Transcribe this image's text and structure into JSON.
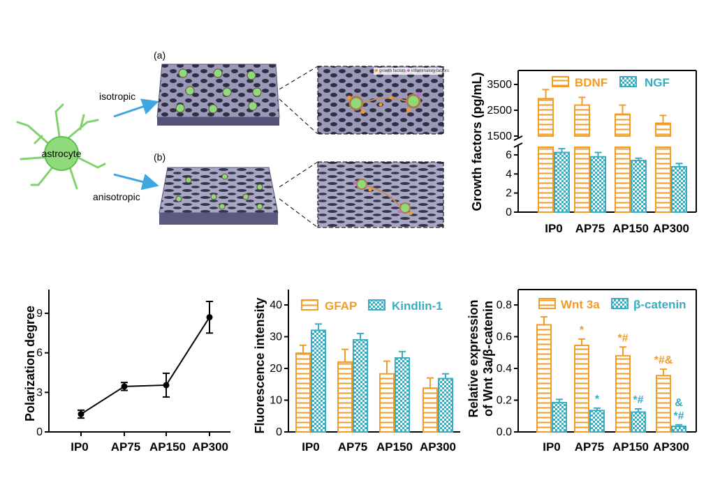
{
  "colors": {
    "orange": "#F39C25",
    "teal": "#3AACC2",
    "black": "#000000",
    "arrow": "#3EA6E0",
    "astro": "#7ED36C",
    "scaffold": "#6E6E8E"
  },
  "schematic": {
    "cell_label": "astrocyte",
    "arrow_top": "isotropic",
    "arrow_bottom": "anisotropic",
    "panel_a": "(a)",
    "panel_b": "(b)",
    "inset_legend": [
      "growth factors",
      "inflammatory factors"
    ]
  },
  "chart_data": [
    {
      "id": "growth",
      "type": "bar",
      "categories": [
        "IP0",
        "AP75",
        "AP150",
        "AP300"
      ],
      "ylabel": "Growth factors (pg/mL)",
      "axis_break": true,
      "upper_ylim": [
        1500,
        3500
      ],
      "upper_ticks": [
        "1500",
        "2500",
        "3500"
      ],
      "lower_ylim": [
        0,
        6.8
      ],
      "lower_ticks": [
        "0",
        "2",
        "4",
        "6"
      ],
      "series": [
        {
          "name": "BDNF",
          "values": [
            2950,
            2700,
            2350,
            2000
          ],
          "errors": [
            350,
            300,
            350,
            300
          ]
        },
        {
          "name": "NGF",
          "values": [
            6.25,
            5.8,
            5.4,
            4.75
          ],
          "errors": [
            0.4,
            0.45,
            0.25,
            0.35
          ]
        }
      ]
    },
    {
      "id": "polarization",
      "type": "line",
      "categories": [
        "IP0",
        "AP75",
        "AP150",
        "AP300"
      ],
      "ylabel": "Polarization degree",
      "ylim": [
        0,
        10.8
      ],
      "yticks": [
        "0",
        "3",
        "6",
        "9"
      ],
      "series": [
        {
          "values": [
            1.35,
            3.45,
            3.55,
            8.7
          ],
          "errors": [
            0.3,
            0.3,
            0.9,
            1.2
          ]
        }
      ]
    },
    {
      "id": "fluorescence",
      "type": "bar",
      "categories": [
        "IP0",
        "AP75",
        "AP150",
        "AP300"
      ],
      "ylabel": "Fluorescence intensity",
      "ylim": [
        0,
        40
      ],
      "yticks": [
        "0",
        "10",
        "20",
        "30",
        "40"
      ],
      "series": [
        {
          "name": "GFAP",
          "values": [
            24.8,
            22.0,
            18.3,
            13.8
          ],
          "errors": [
            2.5,
            4.0,
            4.0,
            3.2
          ]
        },
        {
          "name": "Kindlin-1",
          "values": [
            32.0,
            29.0,
            23.3,
            16.8
          ],
          "errors": [
            2.0,
            2.0,
            2.0,
            1.5
          ]
        }
      ]
    },
    {
      "id": "wnt",
      "type": "bar",
      "categories": [
        "IP0",
        "AP75",
        "AP150",
        "AP300"
      ],
      "ylabel_lines": [
        "Relative expression",
        "of Wnt 3a/β-catenin"
      ],
      "ylim": [
        0,
        0.8
      ],
      "yticks": [
        "0.0",
        "0.2",
        "0.4",
        "0.6",
        "0.8"
      ],
      "series": [
        {
          "name": "Wnt 3a",
          "values": [
            0.675,
            0.545,
            0.48,
            0.355
          ],
          "errors": [
            0.05,
            0.04,
            0.055,
            0.04
          ],
          "labels": [
            "",
            "*",
            "*#",
            "*#&"
          ]
        },
        {
          "name": "β-catenin",
          "values": [
            0.185,
            0.135,
            0.125,
            0.035
          ],
          "errors": [
            0.02,
            0.015,
            0.02,
            0.01
          ],
          "labels": [
            "",
            "*",
            "*#",
            "&\n*#"
          ]
        }
      ]
    }
  ]
}
